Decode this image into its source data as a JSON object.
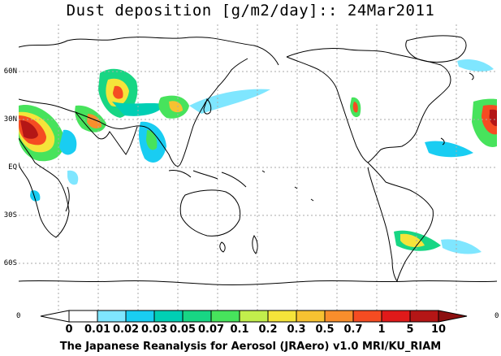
{
  "title": "Dust deposition [g/m2/day]:: 24Mar2011",
  "footer": "The Japanese Reanalysis for Aerosol (JRAero) v1.0 MRI/KU_RIAM",
  "map": {
    "projection": "equirectangular, centered on 180",
    "lat_labels": [
      "60N",
      "30N",
      "EQ",
      "30S",
      "60S"
    ],
    "edge_labels": {
      "left": "0",
      "right": "0"
    }
  },
  "colorbar": {
    "labels": [
      "0",
      "0.01",
      "0.02",
      "0.03",
      "0.05",
      "0.07",
      "0.1",
      "0.2",
      "0.3",
      "0.5",
      "0.7",
      "1",
      "5",
      "10"
    ],
    "colors": [
      "#ffffff",
      "#ffffff",
      "#7fe6ff",
      "#19cdf2",
      "#00cfb4",
      "#18d684",
      "#47e35c",
      "#c2ee4c",
      "#f5e43a",
      "#f7c231",
      "#f98e2c",
      "#f54c22",
      "#e01a1a",
      "#b41616",
      "#8c0f0f"
    ]
  }
}
